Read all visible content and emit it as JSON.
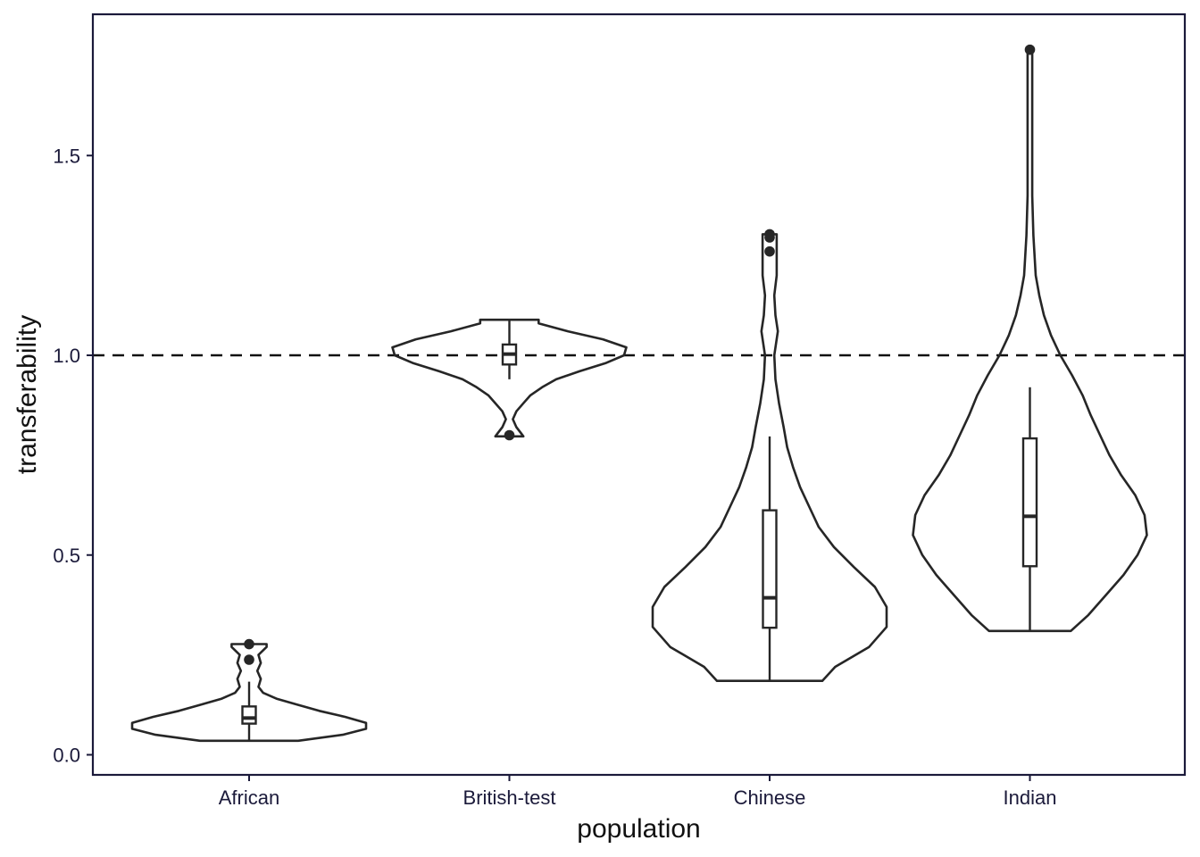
{
  "chart_data": {
    "type": "violin",
    "xlabel": "population",
    "ylabel": "transferability",
    "categories": [
      "African",
      "British-test",
      "Chinese",
      "Indian"
    ],
    "ylim": [
      -0.04,
      1.86
    ],
    "yticks": [
      0.0,
      0.5,
      1.0,
      1.5
    ],
    "ytick_labels": [
      "0.0",
      "0.5",
      "1.0",
      "1.5"
    ],
    "reference_line": {
      "y": 1.0,
      "style": "dashed"
    },
    "grid": false,
    "legend": "none",
    "groups": [
      {
        "category": "African",
        "min": 0.035,
        "max": 0.277,
        "q1": 0.078,
        "median": 0.092,
        "q3": 0.121,
        "whisker_low": 0.035,
        "whisker_high": 0.183,
        "outliers": [
          0.277,
          0.238
        ],
        "density": [
          [
            0.035,
            0.42
          ],
          [
            0.05,
            0.8
          ],
          [
            0.065,
            1.0
          ],
          [
            0.08,
            1.0
          ],
          [
            0.095,
            0.82
          ],
          [
            0.11,
            0.6
          ],
          [
            0.125,
            0.42
          ],
          [
            0.14,
            0.24
          ],
          [
            0.155,
            0.12
          ],
          [
            0.17,
            0.08
          ],
          [
            0.19,
            0.1
          ],
          [
            0.21,
            0.07
          ],
          [
            0.23,
            0.1
          ],
          [
            0.25,
            0.08
          ],
          [
            0.27,
            0.15
          ],
          [
            0.277,
            0.15
          ]
        ]
      },
      {
        "category": "British-test",
        "min": 0.797,
        "max": 1.089,
        "q1": 0.977,
        "median": 1.003,
        "q3": 1.027,
        "whisker_low": 0.94,
        "whisker_high": 1.089,
        "outliers": [
          0.8
        ],
        "density": [
          [
            0.797,
            0.12
          ],
          [
            0.805,
            0.1
          ],
          [
            0.82,
            0.06
          ],
          [
            0.84,
            0.03
          ],
          [
            0.86,
            0.06
          ],
          [
            0.88,
            0.12
          ],
          [
            0.9,
            0.18
          ],
          [
            0.92,
            0.28
          ],
          [
            0.94,
            0.4
          ],
          [
            0.96,
            0.6
          ],
          [
            0.98,
            0.82
          ],
          [
            1.0,
            0.98
          ],
          [
            1.02,
            1.0
          ],
          [
            1.04,
            0.8
          ],
          [
            1.06,
            0.5
          ],
          [
            1.08,
            0.25
          ],
          [
            1.089,
            0.25
          ]
        ]
      },
      {
        "category": "Chinese",
        "min": 0.185,
        "max": 1.303,
        "q1": 0.318,
        "median": 0.393,
        "q3": 0.612,
        "whisker_low": 0.185,
        "whisker_high": 0.797,
        "outliers": [
          1.303,
          1.295,
          1.26
        ],
        "density": [
          [
            0.185,
            0.45
          ],
          [
            0.22,
            0.56
          ],
          [
            0.27,
            0.85
          ],
          [
            0.32,
            1.0
          ],
          [
            0.37,
            1.0
          ],
          [
            0.42,
            0.9
          ],
          [
            0.47,
            0.72
          ],
          [
            0.52,
            0.55
          ],
          [
            0.57,
            0.42
          ],
          [
            0.62,
            0.34
          ],
          [
            0.67,
            0.26
          ],
          [
            0.72,
            0.2
          ],
          [
            0.77,
            0.15
          ],
          [
            0.82,
            0.12
          ],
          [
            0.88,
            0.08
          ],
          [
            0.94,
            0.05
          ],
          [
            1.0,
            0.04
          ],
          [
            1.06,
            0.07
          ],
          [
            1.1,
            0.05
          ],
          [
            1.15,
            0.04
          ],
          [
            1.2,
            0.06
          ],
          [
            1.26,
            0.06
          ],
          [
            1.303,
            0.06
          ]
        ]
      },
      {
        "category": "Indian",
        "min": 0.31,
        "max": 1.765,
        "q1": 0.472,
        "median": 0.597,
        "q3": 0.792,
        "whisker_low": 0.31,
        "whisker_high": 0.92,
        "outliers": [
          1.765
        ],
        "density": [
          [
            0.31,
            0.35
          ],
          [
            0.35,
            0.5
          ],
          [
            0.4,
            0.65
          ],
          [
            0.45,
            0.8
          ],
          [
            0.5,
            0.92
          ],
          [
            0.55,
            1.0
          ],
          [
            0.6,
            0.98
          ],
          [
            0.65,
            0.9
          ],
          [
            0.7,
            0.78
          ],
          [
            0.75,
            0.68
          ],
          [
            0.8,
            0.6
          ],
          [
            0.85,
            0.52
          ],
          [
            0.9,
            0.45
          ],
          [
            0.95,
            0.36
          ],
          [
            1.0,
            0.26
          ],
          [
            1.05,
            0.18
          ],
          [
            1.1,
            0.12
          ],
          [
            1.15,
            0.08
          ],
          [
            1.2,
            0.05
          ],
          [
            1.3,
            0.03
          ],
          [
            1.4,
            0.02
          ],
          [
            1.5,
            0.02
          ],
          [
            1.6,
            0.02
          ],
          [
            1.7,
            0.02
          ],
          [
            1.765,
            0.02
          ]
        ]
      }
    ]
  }
}
